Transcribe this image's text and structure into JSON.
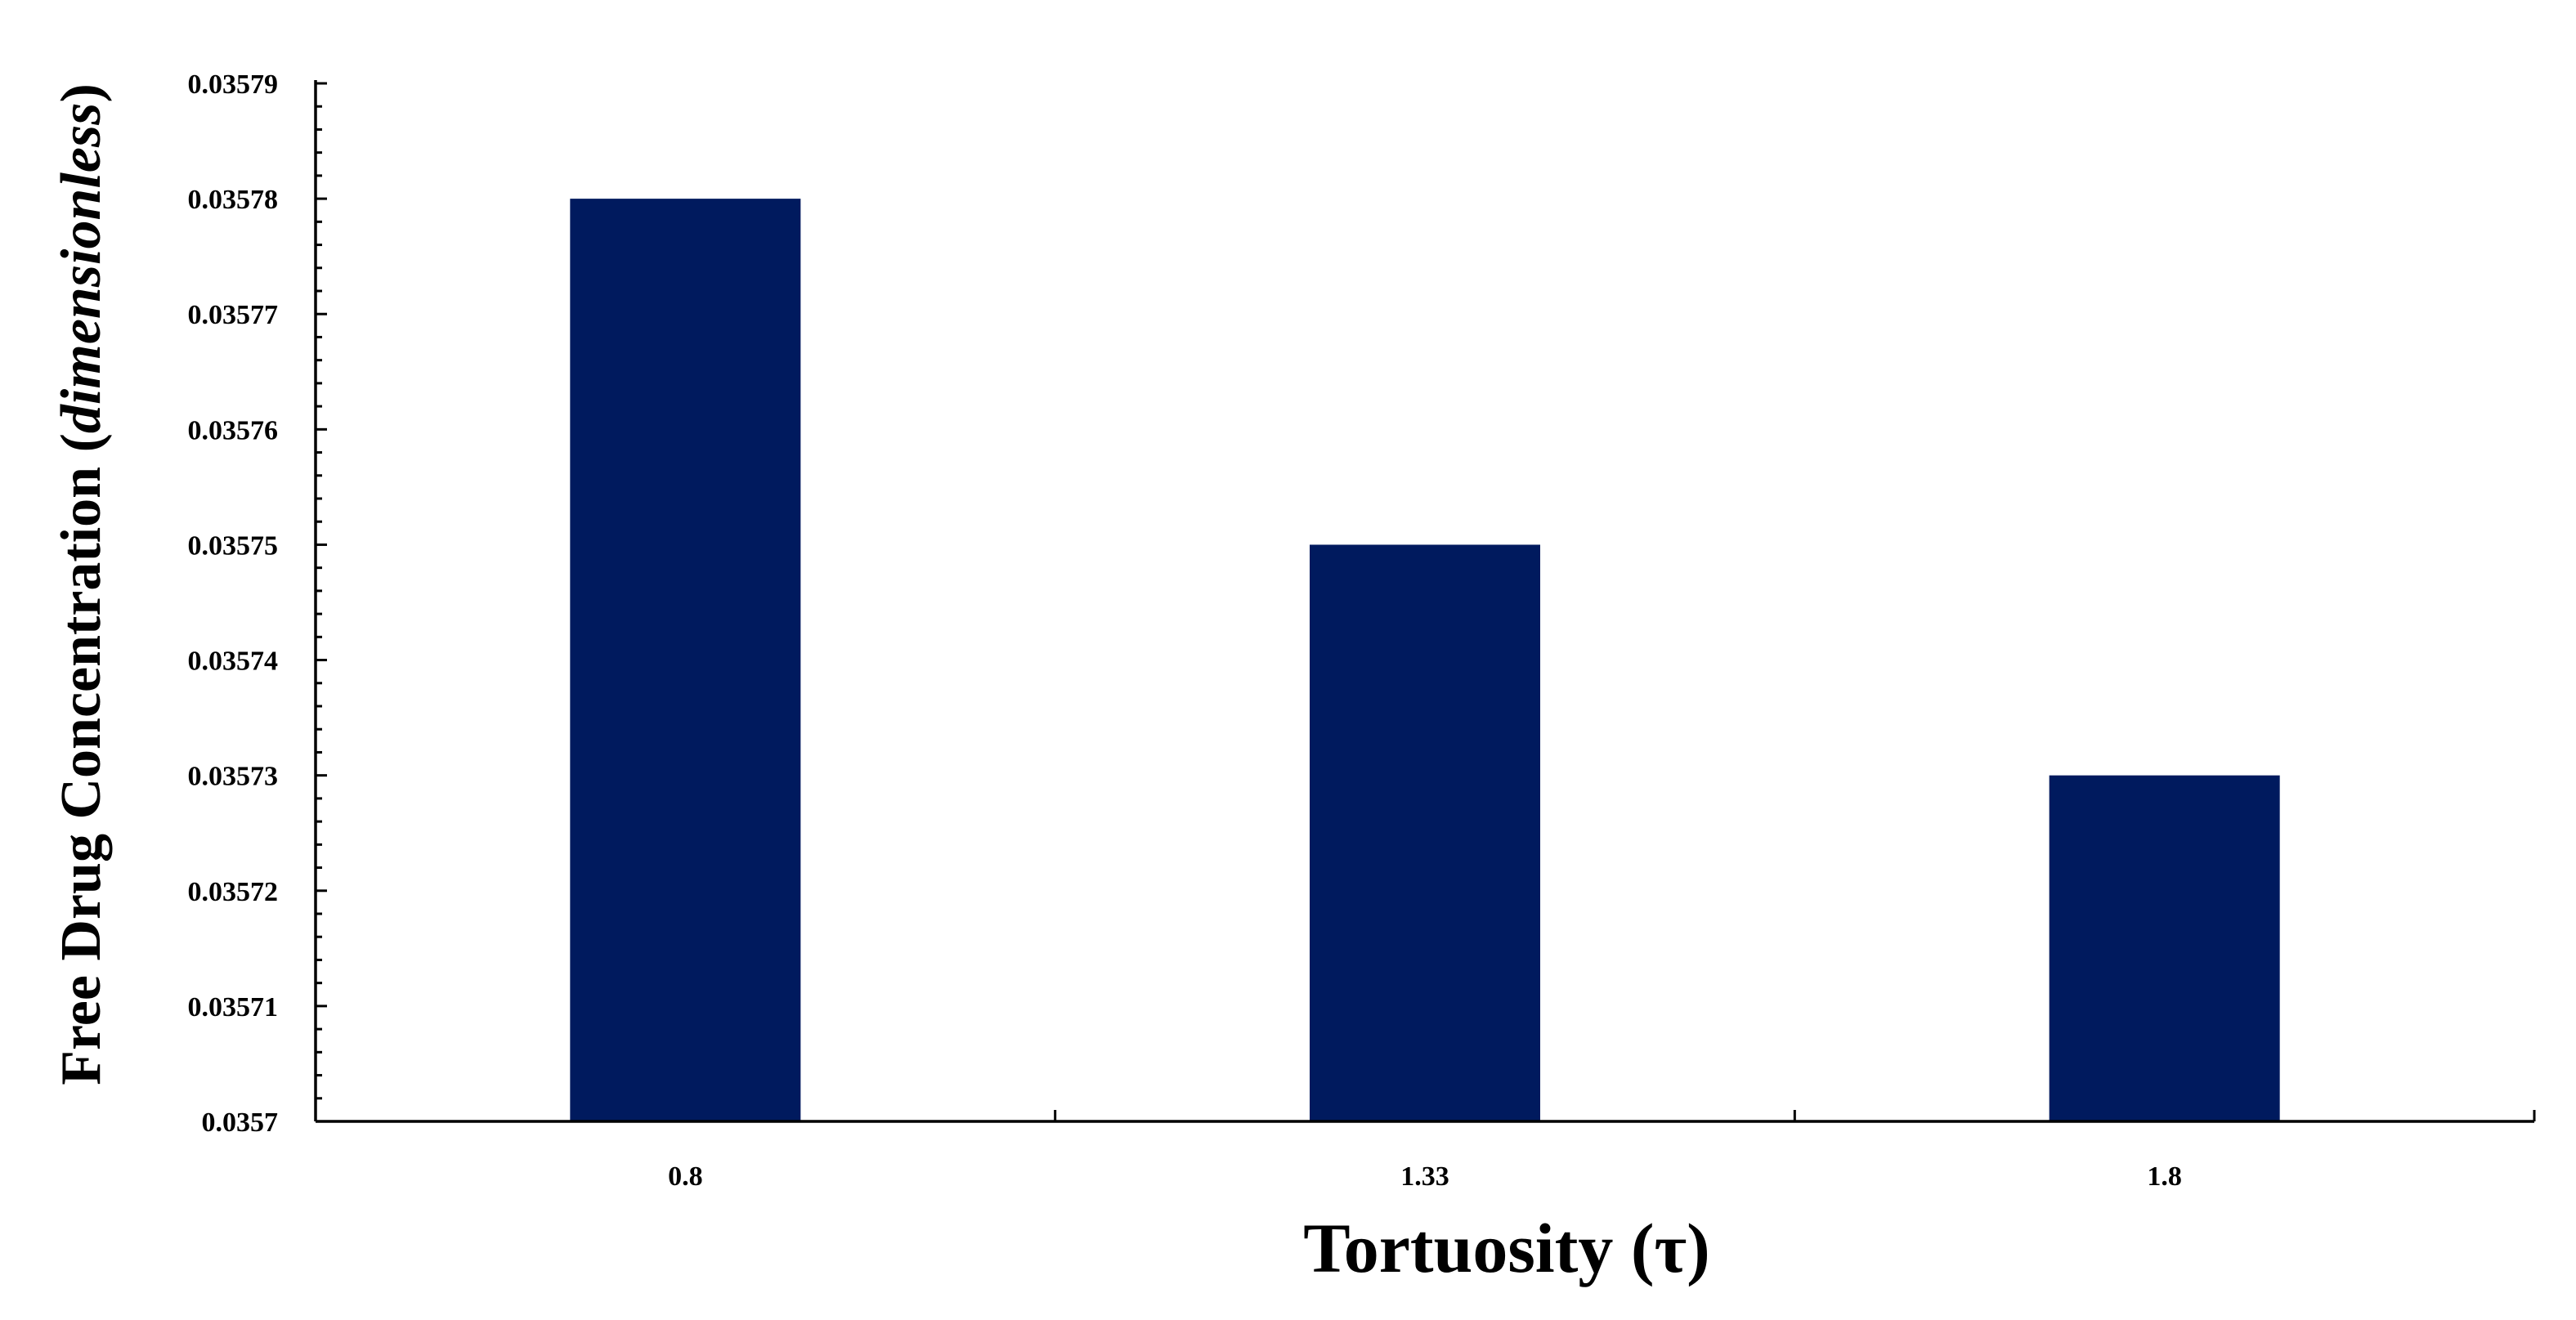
{
  "chart_data": {
    "type": "bar",
    "categories": [
      "0.8",
      "1.33",
      "1.8"
    ],
    "values": [
      0.03578,
      0.03575,
      0.03573
    ],
    "bar_color": "#001a5e",
    "xlabel": "Tortuosity (τ)",
    "ylabel_main": "Free Drug Concentration (",
    "ylabel_italic": "dimensionless",
    "ylabel_close": ")",
    "ylim": [
      0.0357,
      0.03579
    ],
    "yticks": [
      "0.0357",
      "0.03571",
      "0.03572",
      "0.03573",
      "0.03574",
      "0.03575",
      "0.03576",
      "0.03577",
      "0.03578",
      "0.03579"
    ],
    "grid": false,
    "legend": "none"
  }
}
